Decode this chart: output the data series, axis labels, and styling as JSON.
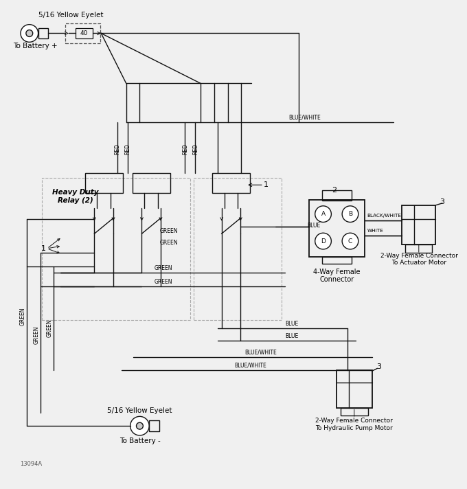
{
  "bg_color": "#f0f0f0",
  "line_color": "#111111",
  "lw": 1.0,
  "fig_width": 6.8,
  "fig_height": 7.12,
  "labels": {
    "eyelet_top": "5/16 Yellow Eyelet",
    "battery_plus": "To Battery +",
    "eyelet_bottom": "5/16 Yellow Eyelet",
    "battery_minus": "To Battery -",
    "relay_label": "Heavy Duty\nRelay (2)",
    "connector_4way": "4-Way Female\nConnector",
    "connector_act": "2-Way Female Connector\nTo Actuator Motor",
    "connector_pump": "2-Way Female Connector\nTo Hydraulic Pump Motor",
    "fuse_label": "40",
    "part_num": "13094A",
    "blue_white": "BLUE/WHITE",
    "blue": "BLUE",
    "green": "GREEN",
    "red": "RED",
    "black_white": "BLACK/WHITE",
    "white_lbl": "WHITE"
  }
}
